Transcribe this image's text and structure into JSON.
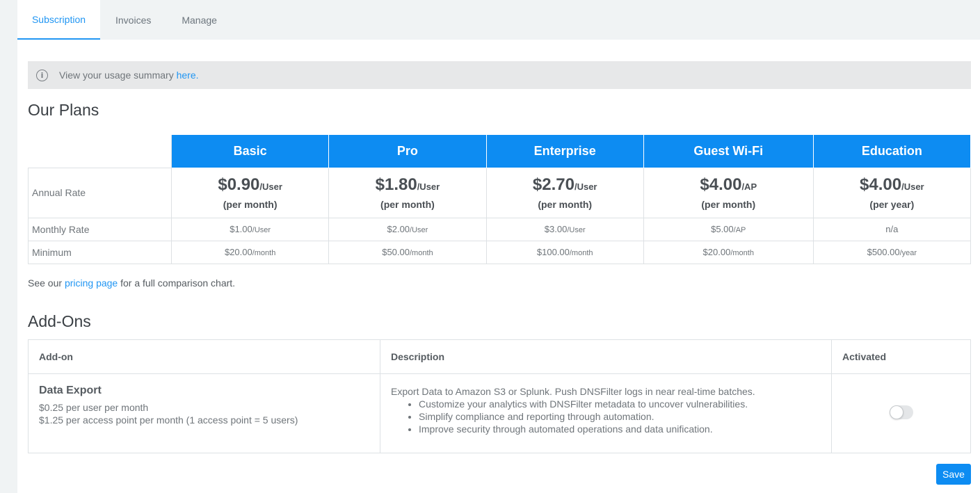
{
  "tabs": [
    {
      "label": "Subscription",
      "active": true
    },
    {
      "label": "Invoices",
      "active": false
    },
    {
      "label": "Manage",
      "active": false
    }
  ],
  "info": {
    "text": "View your usage summary ",
    "link": "here."
  },
  "plans": {
    "title": "Our Plans",
    "columns": [
      "Basic",
      "Pro",
      "Enterprise",
      "Guest Wi-Fi",
      "Education"
    ],
    "annual": {
      "label": "Annual Rate",
      "cells": [
        {
          "price": "$0.90",
          "unit": "/User",
          "period": "(per month)"
        },
        {
          "price": "$1.80",
          "unit": "/User",
          "period": "(per month)"
        },
        {
          "price": "$2.70",
          "unit": "/User",
          "period": "(per month)"
        },
        {
          "price": "$4.00",
          "unit": "/AP",
          "period": "(per month)"
        },
        {
          "price": "$4.00",
          "unit": "/User",
          "period": "(per year)"
        }
      ]
    },
    "monthly": {
      "label": "Monthly Rate",
      "cells": [
        {
          "price": "$1.00",
          "unit": "/User"
        },
        {
          "price": "$2.00",
          "unit": "/User"
        },
        {
          "price": "$3.00",
          "unit": "/User"
        },
        {
          "price": "$5.00",
          "unit": "/AP"
        },
        {
          "price": "n/a",
          "unit": ""
        }
      ]
    },
    "minimum": {
      "label": "Minimum",
      "cells": [
        {
          "price": "$20.00",
          "unit": "/month"
        },
        {
          "price": "$50.00",
          "unit": "/month"
        },
        {
          "price": "$100.00",
          "unit": "/month"
        },
        {
          "price": "$20.00",
          "unit": "/month"
        },
        {
          "price": "$500.00",
          "unit": "/year"
        }
      ]
    },
    "note_prefix": "See our ",
    "note_link": "pricing page",
    "note_suffix": " for a full comparison chart."
  },
  "addons": {
    "title": "Add-Ons",
    "headers": {
      "addon": "Add-on",
      "description": "Description",
      "activated": "Activated"
    },
    "items": [
      {
        "name": "Data Export",
        "price_line_1": "$0.25 per user per month",
        "price_line_2": "$1.25 per access point per month (1 access point = 5 users)",
        "description": "Export Data to Amazon S3 or Splunk. Push DNSFilter logs in near real-time batches.",
        "bullets": [
          "Customize your analytics with DNSFilter metadata to uncover vulnerabilities.",
          "Simplify compliance and reporting through automation.",
          "Improve security through automated operations and data unification."
        ],
        "activated": false
      }
    ]
  },
  "actions": {
    "save_label": "Save"
  },
  "colors": {
    "accent": "#0d8cf2",
    "link": "#2196f3"
  }
}
